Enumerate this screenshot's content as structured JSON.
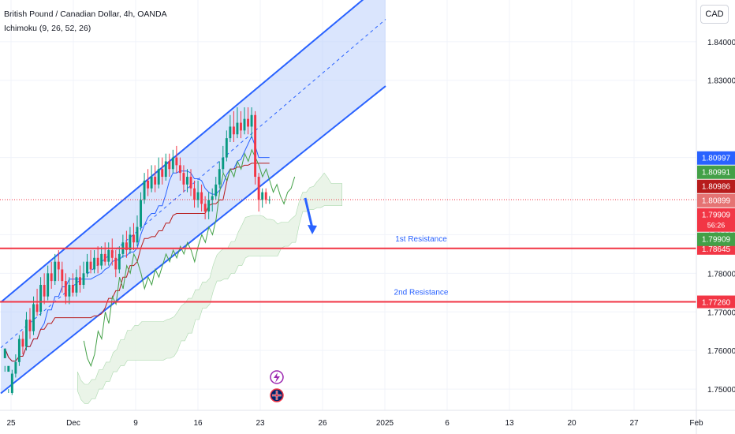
{
  "header": {
    "title": "British Pound / Canadian Dollar, 4h, OANDA",
    "indicator": "Ichimoku (9, 26, 52, 26)"
  },
  "currency_button": "CAD",
  "colors": {
    "up": "#089981",
    "down": "#f23645",
    "channel": "#2962ff",
    "channel_fill": "#bbd0fb",
    "resistance": "#f23645",
    "resistance_text": "#2962ff",
    "lagging": "#43a047",
    "base": "#b71c1c",
    "conversion": "#2962ff",
    "cloud_green": "#e8f3e6",
    "cloud_red": "#fbdedf"
  },
  "icons": [
    "lightning-icon",
    "flag-uk-icon"
  ],
  "chart_data": {
    "type": "candlestick",
    "symbol": "GBPCAD",
    "timeframe": "4h",
    "y_range": [
      1.7445,
      1.8508
    ],
    "y_ticks": [
      1.84,
      1.83,
      1.81,
      1.79,
      1.78,
      1.77,
      1.76,
      1.75
    ],
    "y_tick_labels": [
      "1.84000",
      "1.83000",
      "1.81000",
      "1.79000",
      "1.78000",
      "1.77000",
      "1.76000",
      "1.75000"
    ],
    "x_tick_labels": [
      "25",
      "Dec",
      "9",
      "16",
      "23",
      "26",
      "2025",
      "6",
      "13",
      "20",
      "27",
      "Feb"
    ],
    "price_labels": [
      {
        "value": 1.80997,
        "text": "1.80997",
        "color": "#2962ff"
      },
      {
        "value": 1.80991,
        "text": "1.80991",
        "color": "#43a047"
      },
      {
        "value": 1.80986,
        "text": "1.80986",
        "color": "#b71c1c"
      },
      {
        "value": 1.80899,
        "text": "1.80899",
        "color": "#e57373"
      },
      {
        "value": 1.79909,
        "text": "1.79909",
        "sub": "56:26",
        "color": "#f23645"
      },
      {
        "value": 1.79909,
        "text": "1.79909",
        "color": "#43a047"
      }
    ],
    "last_price": 1.79909,
    "resistances": [
      {
        "label": "1st Resistance",
        "value": 1.78645,
        "tag": "1.78645"
      },
      {
        "label": "2nd Resistance",
        "value": 1.7726,
        "tag": "1.77260"
      }
    ],
    "channel": {
      "upper": [
        [
          1,
          1.7725
        ],
        [
          489,
          1.8558
        ]
      ],
      "lower": [
        [
          1,
          1.7489
        ],
        [
          489,
          1.8285
        ]
      ],
      "mid": [
        [
          1,
          1.7607
        ],
        [
          489,
          1.8458
        ]
      ]
    },
    "arrow": {
      "direction": "down"
    },
    "candles": [
      [
        1.758,
        1.7605,
        1.756,
        1.7545
      ],
      [
        1.7545,
        1.756,
        1.75,
        1.749
      ],
      [
        1.749,
        1.754,
        1.755,
        1.7485
      ],
      [
        1.754,
        1.757,
        1.759,
        1.753
      ],
      [
        1.757,
        1.763,
        1.764,
        1.756
      ],
      [
        1.763,
        1.761,
        1.765,
        1.759
      ],
      [
        1.761,
        1.768,
        1.77,
        1.76
      ],
      [
        1.768,
        1.765,
        1.771,
        1.763
      ],
      [
        1.765,
        1.772,
        1.774,
        1.764
      ],
      [
        1.772,
        1.77,
        1.776,
        1.769
      ],
      [
        1.77,
        1.777,
        1.779,
        1.769
      ],
      [
        1.777,
        1.774,
        1.78,
        1.772
      ],
      [
        1.774,
        1.78,
        1.782,
        1.773
      ],
      [
        1.78,
        1.778,
        1.783,
        1.776
      ],
      [
        1.778,
        1.783,
        1.785,
        1.777
      ],
      [
        1.783,
        1.781,
        1.786,
        1.778
      ],
      [
        1.781,
        1.778,
        1.783,
        1.775
      ],
      [
        1.778,
        1.774,
        1.78,
        1.772
      ],
      [
        1.774,
        1.777,
        1.779,
        1.772
      ],
      [
        1.777,
        1.775,
        1.78,
        1.774
      ],
      [
        1.775,
        1.779,
        1.781,
        1.774
      ],
      [
        1.779,
        1.777,
        1.782,
        1.775
      ],
      [
        1.777,
        1.78,
        1.783,
        1.776
      ],
      [
        1.78,
        1.783,
        1.785,
        1.779
      ],
      [
        1.783,
        1.781,
        1.786,
        1.78
      ],
      [
        1.781,
        1.784,
        1.786,
        1.78
      ],
      [
        1.784,
        1.782,
        1.787,
        1.78
      ],
      [
        1.782,
        1.785,
        1.787,
        1.781
      ],
      [
        1.785,
        1.783,
        1.788,
        1.782
      ],
      [
        1.783,
        1.786,
        1.788,
        1.782
      ],
      [
        1.786,
        1.784,
        1.789,
        1.782
      ],
      [
        1.784,
        1.781,
        1.786,
        1.779
      ],
      [
        1.781,
        1.785,
        1.787,
        1.78
      ],
      [
        1.785,
        1.788,
        1.79,
        1.784
      ],
      [
        1.788,
        1.786,
        1.791,
        1.784
      ],
      [
        1.786,
        1.79,
        1.792,
        1.785
      ],
      [
        1.79,
        1.788,
        1.793,
        1.786
      ],
      [
        1.788,
        1.792,
        1.795,
        1.787
      ],
      [
        1.792,
        1.799,
        1.801,
        1.791
      ],
      [
        1.799,
        1.804,
        1.806,
        1.798
      ],
      [
        1.804,
        1.802,
        1.807,
        1.8
      ],
      [
        1.802,
        1.805,
        1.808,
        1.801
      ],
      [
        1.805,
        1.803,
        1.808,
        1.801
      ],
      [
        1.803,
        1.807,
        1.81,
        1.802
      ],
      [
        1.807,
        1.805,
        1.81,
        1.803
      ],
      [
        1.805,
        1.809,
        1.811,
        1.804
      ],
      [
        1.809,
        1.807,
        1.811,
        1.805
      ],
      [
        1.807,
        1.81,
        1.812,
        1.806
      ],
      [
        1.81,
        1.808,
        1.813,
        1.806
      ],
      [
        1.808,
        1.806,
        1.81,
        1.804
      ],
      [
        1.806,
        1.803,
        1.808,
        1.801
      ],
      [
        1.803,
        1.805,
        1.807,
        1.801
      ],
      [
        1.805,
        1.802,
        1.807,
        1.8
      ],
      [
        1.802,
        1.799,
        1.804,
        1.797
      ],
      [
        1.799,
        1.801,
        1.804,
        1.797
      ],
      [
        1.801,
        1.798,
        1.803,
        1.796
      ],
      [
        1.798,
        1.796,
        1.8,
        1.794
      ],
      [
        1.796,
        1.799,
        1.801,
        1.794
      ],
      [
        1.799,
        1.8,
        1.802,
        1.796
      ],
      [
        1.8,
        1.803,
        1.805,
        1.799
      ],
      [
        1.803,
        1.807,
        1.809,
        1.802
      ],
      [
        1.807,
        1.81,
        1.813,
        1.806
      ],
      [
        1.81,
        1.815,
        1.817,
        1.809
      ],
      [
        1.815,
        1.818,
        1.821,
        1.814
      ],
      [
        1.818,
        1.816,
        1.822,
        1.814
      ],
      [
        1.816,
        1.819,
        1.823,
        1.815
      ],
      [
        1.819,
        1.817,
        1.822,
        1.815
      ],
      [
        1.817,
        1.82,
        1.823,
        1.816
      ],
      [
        1.82,
        1.818,
        1.823,
        1.816
      ],
      [
        1.818,
        1.821,
        1.823,
        1.815
      ],
      [
        1.821,
        1.805,
        1.822,
        1.803
      ],
      [
        1.805,
        1.799,
        1.806,
        1.796
      ],
      [
        1.799,
        1.801,
        1.802,
        1.797
      ],
      [
        1.801,
        1.799,
        1.802,
        1.798
      ],
      [
        1.799,
        1.7991,
        1.8,
        1.798
      ]
    ]
  }
}
